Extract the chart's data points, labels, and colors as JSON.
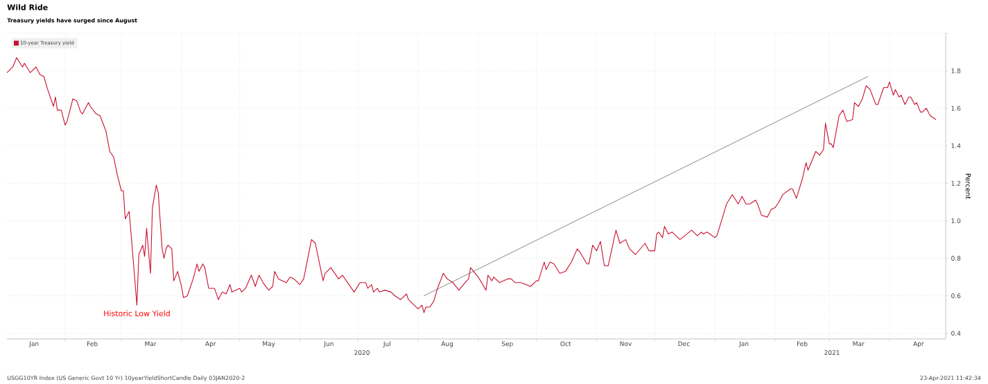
{
  "chart_data": {
    "type": "line",
    "title": "Wild Ride",
    "subtitle": "Treasury yields have surged since August",
    "ylabel": "Percent",
    "xlim": [
      "2020-01-02",
      "2021-04-30"
    ],
    "ylim": [
      0.37,
      2.0
    ],
    "yticks": [
      0.4,
      0.6,
      0.8,
      {
        "value": 1.0,
        "label": "1.0"
      },
      1.2,
      1.4,
      1.6,
      1.8,
      {
        "value": 2.0,
        "label": null
      }
    ],
    "xticks": [
      {
        "value": "2020-01-16",
        "label": "Jan"
      },
      {
        "value": "2020-02-01",
        "label": null
      },
      {
        "value": "2020-02-15",
        "label": "Feb"
      },
      {
        "value": "2020-03-01",
        "label": null
      },
      {
        "value": "2020-03-16",
        "label": "Mar"
      },
      {
        "value": "2020-04-01",
        "label": null
      },
      {
        "value": "2020-04-16",
        "label": "Apr"
      },
      {
        "value": "2020-05-01",
        "label": null
      },
      {
        "value": "2020-05-16",
        "label": "May"
      },
      {
        "value": "2020-06-01",
        "label": null
      },
      {
        "value": "2020-06-16",
        "label": "Jun"
      },
      {
        "value": "2020-07-01",
        "label": null
      },
      {
        "value": "2020-07-16",
        "label": "Jul"
      },
      {
        "value": "2020-08-01",
        "label": null
      },
      {
        "value": "2020-08-16",
        "label": "Aug"
      },
      {
        "value": "2020-09-01",
        "label": null
      },
      {
        "value": "2020-09-16",
        "label": "Sep"
      },
      {
        "value": "2020-10-01",
        "label": null
      },
      {
        "value": "2020-10-16",
        "label": "Oct"
      },
      {
        "value": "2020-11-01",
        "label": null
      },
      {
        "value": "2020-11-16",
        "label": "Nov"
      },
      {
        "value": "2020-12-01",
        "label": null
      },
      {
        "value": "2020-12-16",
        "label": "Dec"
      },
      {
        "value": "2021-01-01",
        "label": null
      },
      {
        "value": "2021-01-16",
        "label": "Jan"
      },
      {
        "value": "2021-02-01",
        "label": null
      },
      {
        "value": "2021-02-15",
        "label": "Feb"
      },
      {
        "value": "2021-03-01",
        "label": null
      },
      {
        "value": "2021-03-16",
        "label": "Mar"
      },
      {
        "value": "2021-04-01",
        "label": null
      },
      {
        "value": "2021-04-16",
        "label": "Apr"
      }
    ],
    "grid": true,
    "legend": "top left",
    "marker": "none",
    "line_style": "solid",
    "series": [
      {
        "name": "10-year Treasury yield",
        "color": "#c8102e",
        "x": [
          "2020-01-02",
          "2020-01-05",
          "2020-01-07",
          "2020-01-10",
          "2020-01-11",
          "2020-01-14",
          "2020-01-17",
          "2020-01-19",
          "2020-01-21",
          "2020-01-23",
          "2020-01-26",
          "2020-01-27",
          "2020-01-28",
          "2020-01-30",
          "2020-02-01",
          "2020-02-02",
          "2020-02-05",
          "2020-02-07",
          "2020-02-09",
          "2020-02-10",
          "2020-02-13",
          "2020-02-14",
          "2020-02-17",
          "2020-02-19",
          "2020-02-22",
          "2020-02-24",
          "2020-02-26",
          "2020-02-28",
          "2020-03-01",
          "2020-03-02",
          "2020-03-03",
          "2020-03-05",
          "2020-03-06",
          "2020-03-09",
          "2020-03-10",
          "2020-03-12",
          "2020-03-13",
          "2020-03-14",
          "2020-03-16",
          "2020-03-17",
          "2020-03-19",
          "2020-03-20",
          "2020-03-22",
          "2020-03-23",
          "2020-03-24",
          "2020-03-25",
          "2020-03-27",
          "2020-03-28",
          "2020-03-30",
          "2020-04-01",
          "2020-04-02",
          "2020-04-04",
          "2020-04-07",
          "2020-04-09",
          "2020-04-10",
          "2020-04-12",
          "2020-04-13",
          "2020-04-15",
          "2020-04-18",
          "2020-04-20",
          "2020-04-22",
          "2020-04-24",
          "2020-04-26",
          "2020-04-27",
          "2020-05-01",
          "2020-05-02",
          "2020-05-04",
          "2020-05-07",
          "2020-05-09",
          "2020-05-11",
          "2020-05-13",
          "2020-05-16",
          "2020-05-18",
          "2020-05-19",
          "2020-05-21",
          "2020-05-25",
          "2020-05-27",
          "2020-05-29",
          "2020-06-01",
          "2020-06-03",
          "2020-06-07",
          "2020-06-09",
          "2020-06-13",
          "2020-06-14",
          "2020-06-17",
          "2020-06-21",
          "2020-06-23",
          "2020-06-25",
          "2020-06-29",
          "2020-07-02",
          "2020-07-05",
          "2020-07-06",
          "2020-07-08",
          "2020-07-09",
          "2020-07-11",
          "2020-07-12",
          "2020-07-15",
          "2020-07-18",
          "2020-07-20",
          "2020-07-23",
          "2020-07-26",
          "2020-07-27",
          "2020-07-29",
          "2020-08-01",
          "2020-08-03",
          "2020-08-04",
          "2020-08-05",
          "2020-08-07",
          "2020-08-09",
          "2020-08-11",
          "2020-08-14",
          "2020-08-16",
          "2020-08-19",
          "2020-08-22",
          "2020-08-26",
          "2020-08-27",
          "2020-08-28",
          "2020-09-01",
          "2020-09-05",
          "2020-09-06",
          "2020-09-08",
          "2020-09-09",
          "2020-09-12",
          "2020-09-16",
          "2020-09-18",
          "2020-09-20",
          "2020-09-23",
          "2020-09-28",
          "2020-10-01",
          "2020-10-02",
          "2020-10-05",
          "2020-10-06",
          "2020-10-08",
          "2020-10-10",
          "2020-10-13",
          "2020-10-16",
          "2020-10-19",
          "2020-10-22",
          "2020-10-23",
          "2020-10-27",
          "2020-10-28",
          "2020-10-30",
          "2020-11-01",
          "2020-11-03",
          "2020-11-05",
          "2020-11-07",
          "2020-11-11",
          "2020-11-13",
          "2020-11-16",
          "2020-11-18",
          "2020-11-21",
          "2020-11-26",
          "2020-11-28",
          "2020-12-01",
          "2020-12-02",
          "2020-12-03",
          "2020-12-05",
          "2020-12-06",
          "2020-12-08",
          "2020-12-10",
          "2020-12-14",
          "2020-12-20",
          "2020-12-23",
          "2020-12-25",
          "2020-12-26",
          "2020-12-28",
          "2021-01-01",
          "2021-01-02",
          "2021-01-05",
          "2021-01-07",
          "2021-01-10",
          "2021-01-13",
          "2021-01-15",
          "2021-01-17",
          "2021-01-19",
          "2021-01-22",
          "2021-01-23",
          "2021-01-25",
          "2021-01-28",
          "2021-01-30",
          "2021-02-01",
          "2021-02-03",
          "2021-02-05",
          "2021-02-09",
          "2021-02-10",
          "2021-02-12",
          "2021-02-15",
          "2021-02-17",
          "2021-02-18",
          "2021-02-22",
          "2021-02-24",
          "2021-02-26",
          "2021-02-27",
          "2021-03-01",
          "2021-03-02",
          "2021-03-03",
          "2021-03-06",
          "2021-03-08",
          "2021-03-10",
          "2021-03-13",
          "2021-03-14",
          "2021-03-16",
          "2021-03-18",
          "2021-03-20",
          "2021-03-22",
          "2021-03-25",
          "2021-03-26",
          "2021-03-29",
          "2021-03-31",
          "2021-04-01",
          "2021-04-03",
          "2021-04-04",
          "2021-04-06",
          "2021-04-07",
          "2021-04-09",
          "2021-04-11",
          "2021-04-12",
          "2021-04-14",
          "2021-04-15",
          "2021-04-17",
          "2021-04-18",
          "2021-04-20",
          "2021-04-22",
          "2021-04-25"
        ],
        "values": [
          1.79,
          1.82,
          1.87,
          1.82,
          1.84,
          1.79,
          1.82,
          1.78,
          1.77,
          1.7,
          1.61,
          1.66,
          1.59,
          1.59,
          1.51,
          1.53,
          1.65,
          1.64,
          1.58,
          1.57,
          1.63,
          1.61,
          1.57,
          1.56,
          1.48,
          1.37,
          1.34,
          1.24,
          1.16,
          1.16,
          1.01,
          1.05,
          0.93,
          0.55,
          0.82,
          0.87,
          0.81,
          0.96,
          0.72,
          1.07,
          1.19,
          1.15,
          0.85,
          0.8,
          0.85,
          0.87,
          0.85,
          0.68,
          0.73,
          0.65,
          0.59,
          0.6,
          0.69,
          0.77,
          0.73,
          0.77,
          0.75,
          0.64,
          0.64,
          0.58,
          0.62,
          0.61,
          0.66,
          0.62,
          0.64,
          0.62,
          0.64,
          0.71,
          0.65,
          0.71,
          0.67,
          0.63,
          0.65,
          0.73,
          0.69,
          0.67,
          0.7,
          0.69,
          0.66,
          0.69,
          0.9,
          0.88,
          0.68,
          0.72,
          0.75,
          0.69,
          0.71,
          0.68,
          0.62,
          0.67,
          0.67,
          0.64,
          0.66,
          0.62,
          0.64,
          0.62,
          0.63,
          0.62,
          0.6,
          0.58,
          0.61,
          0.58,
          0.56,
          0.53,
          0.55,
          0.51,
          0.54,
          0.54,
          0.57,
          0.64,
          0.72,
          0.69,
          0.67,
          0.63,
          0.68,
          0.69,
          0.75,
          0.7,
          0.63,
          0.71,
          0.68,
          0.7,
          0.67,
          0.69,
          0.69,
          0.67,
          0.67,
          0.65,
          0.68,
          0.68,
          0.78,
          0.74,
          0.78,
          0.77,
          0.72,
          0.73,
          0.78,
          0.85,
          0.84,
          0.77,
          0.77,
          0.87,
          0.84,
          0.89,
          0.76,
          0.76,
          0.95,
          0.88,
          0.9,
          0.85,
          0.82,
          0.88,
          0.84,
          0.84,
          0.93,
          0.94,
          0.91,
          0.97,
          0.93,
          0.94,
          0.9,
          0.95,
          0.92,
          0.94,
          0.93,
          0.94,
          0.91,
          0.92,
          1.02,
          1.09,
          1.14,
          1.09,
          1.13,
          1.09,
          1.09,
          1.11,
          1.09,
          1.03,
          1.02,
          1.06,
          1.07,
          1.1,
          1.14,
          1.17,
          1.17,
          1.12,
          1.22,
          1.31,
          1.27,
          1.37,
          1.35,
          1.38,
          1.52,
          1.41,
          1.41,
          1.39,
          1.56,
          1.59,
          1.53,
          1.54,
          1.63,
          1.61,
          1.65,
          1.72,
          1.7,
          1.62,
          1.62,
          1.71,
          1.71,
          1.74,
          1.67,
          1.7,
          1.66,
          1.67,
          1.62,
          1.66,
          1.66,
          1.62,
          1.63,
          1.58,
          1.58,
          1.6,
          1.56,
          1.54
        ]
      },
      {
        "color": "#555555",
        "x": [
          "2020-08-04",
          "2021-03-21"
        ],
        "values": [
          0.6,
          1.77
        ]
      }
    ],
    "annotations": [
      {
        "text": "Historic Low Yield",
        "x": "2020-03-09",
        "y": 0.55
      },
      "2020",
      "2021",
      "USGG10YR Index (US Generic Govt 10 Yr) 10yearYieldShortCandle Daily 03JAN2020-2",
      "23-Apr-2021 11:42:34"
    ]
  }
}
